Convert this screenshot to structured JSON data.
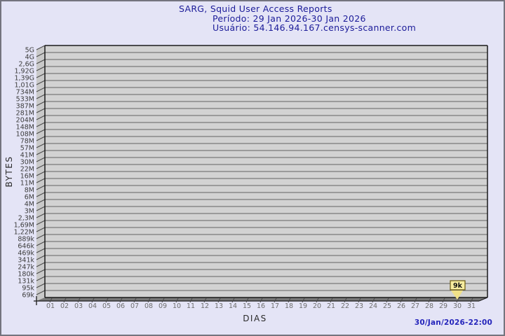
{
  "page": {
    "background": "#e4e4f6",
    "border_color": "#74747e"
  },
  "header": {
    "title": "SARG, Squid User Access Reports",
    "period": "Período: 29 Jan 2026-30 Jan 2026",
    "user": "Usuário: 54.146.94.167.censys-scanner.com",
    "text_color": "#1b1b99"
  },
  "footer": {
    "timestamp": "30/Jan/2026-22:00",
    "color": "#2424bb"
  },
  "chart_data": {
    "type": "line",
    "title": "SARG, Squid User Access Reports",
    "xlabel": "DIAS",
    "ylabel": "BYTES",
    "grid": true,
    "legend": "none",
    "y_scale": "log",
    "y_tick_labels": [
      "5G",
      "4G",
      "2,6G",
      "1,92G",
      "1,39G",
      "1,01G",
      "734M",
      "533M",
      "387M",
      "281M",
      "204M",
      "148M",
      "108M",
      "78M",
      "57M",
      "41M",
      "30M",
      "22M",
      "16M",
      "11M",
      "8M",
      "6M",
      "4M",
      "3M",
      "2,3M",
      "1,69M",
      "1,22M",
      "889k",
      "646k",
      "469k",
      "341k",
      "247k",
      "180k",
      "131k",
      "95k",
      "69k"
    ],
    "x_tick_labels": [
      "01",
      "02",
      "03",
      "04",
      "05",
      "06",
      "07",
      "08",
      "09",
      "10",
      "11",
      "12",
      "13",
      "14",
      "15",
      "16",
      "17",
      "18",
      "19",
      "20",
      "21",
      "22",
      "23",
      "24",
      "25",
      "26",
      "27",
      "28",
      "29",
      "30",
      "31"
    ],
    "points": [
      {
        "x": "30",
        "value_label": "9k"
      }
    ],
    "colors": {
      "plot_bg": "#d2d2d2",
      "wall_bg": "#c9c9c9",
      "floor": "#787878",
      "grid": "#646464",
      "frame": "#1a1a1a",
      "tick": "#4a4a4a",
      "marker_fill": "#f7eda0",
      "marker_arrow": "#f0e188",
      "marker_border": "#6b5a12"
    }
  }
}
